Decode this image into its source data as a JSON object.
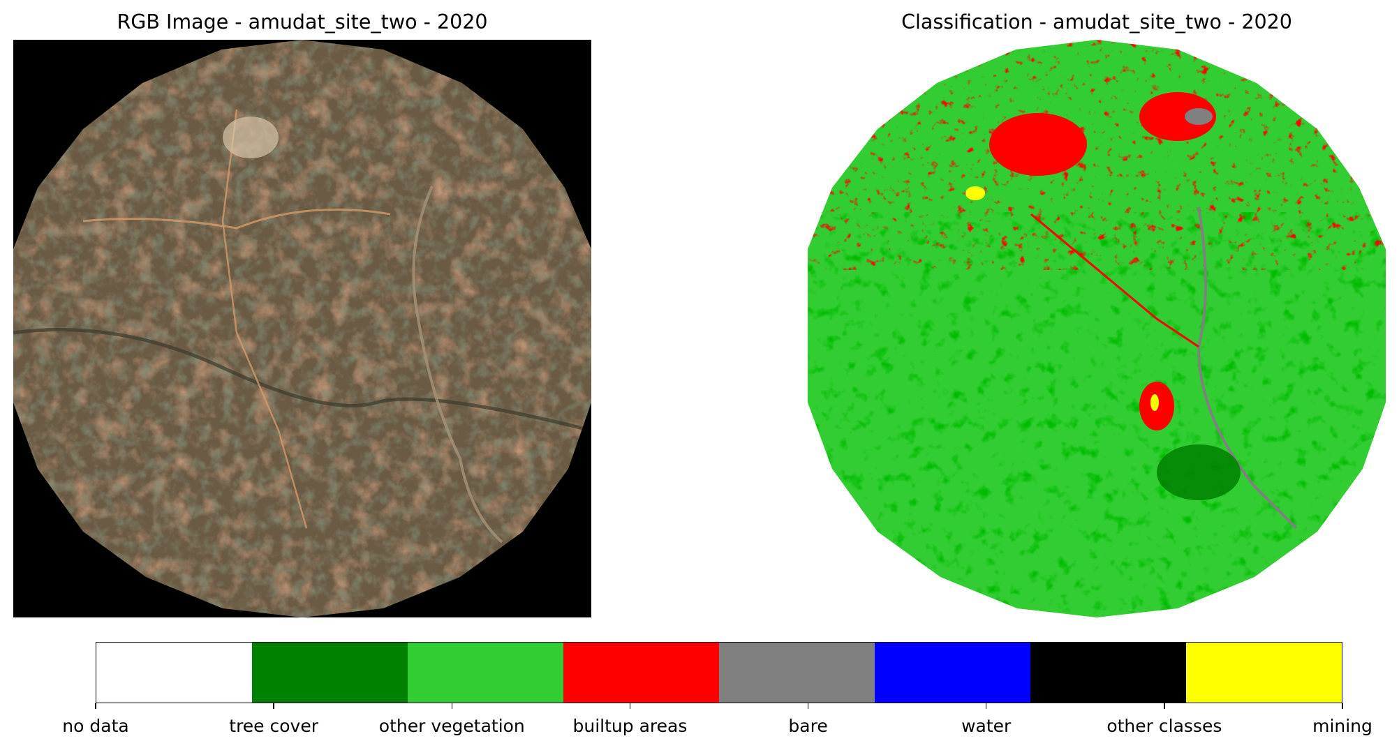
{
  "left_panel": {
    "title": "RGB Image - amudat_site_two - 2020"
  },
  "right_panel": {
    "title": "Classification - amudat_site_two - 2020"
  },
  "colors": {
    "background": "#000000",
    "rgb_soil": "#8a6a4c",
    "rgb_dark": "#4a4634",
    "rgb_orange": "#c0704a",
    "rgb_light": "#d8c4a8",
    "class_other_vegetation": "#32cd32",
    "class_tree_cover": "#008000",
    "class_builtup": "#ff0000",
    "class_bare": "#808080",
    "class_water": "#0000ff",
    "class_mining": "#ffff00"
  },
  "legend": {
    "classes": [
      {
        "label": "no data",
        "color": "#ffffff"
      },
      {
        "label": "tree cover",
        "color": "#008000"
      },
      {
        "label": "other vegetation",
        "color": "#32cd32"
      },
      {
        "label": "builtup areas",
        "color": "#ff0000"
      },
      {
        "label": "bare",
        "color": "#808080"
      },
      {
        "label": "water",
        "color": "#0000ff"
      },
      {
        "label": "other classes",
        "color": "#000000"
      },
      {
        "label": "mining",
        "color": "#ffff00"
      }
    ]
  }
}
